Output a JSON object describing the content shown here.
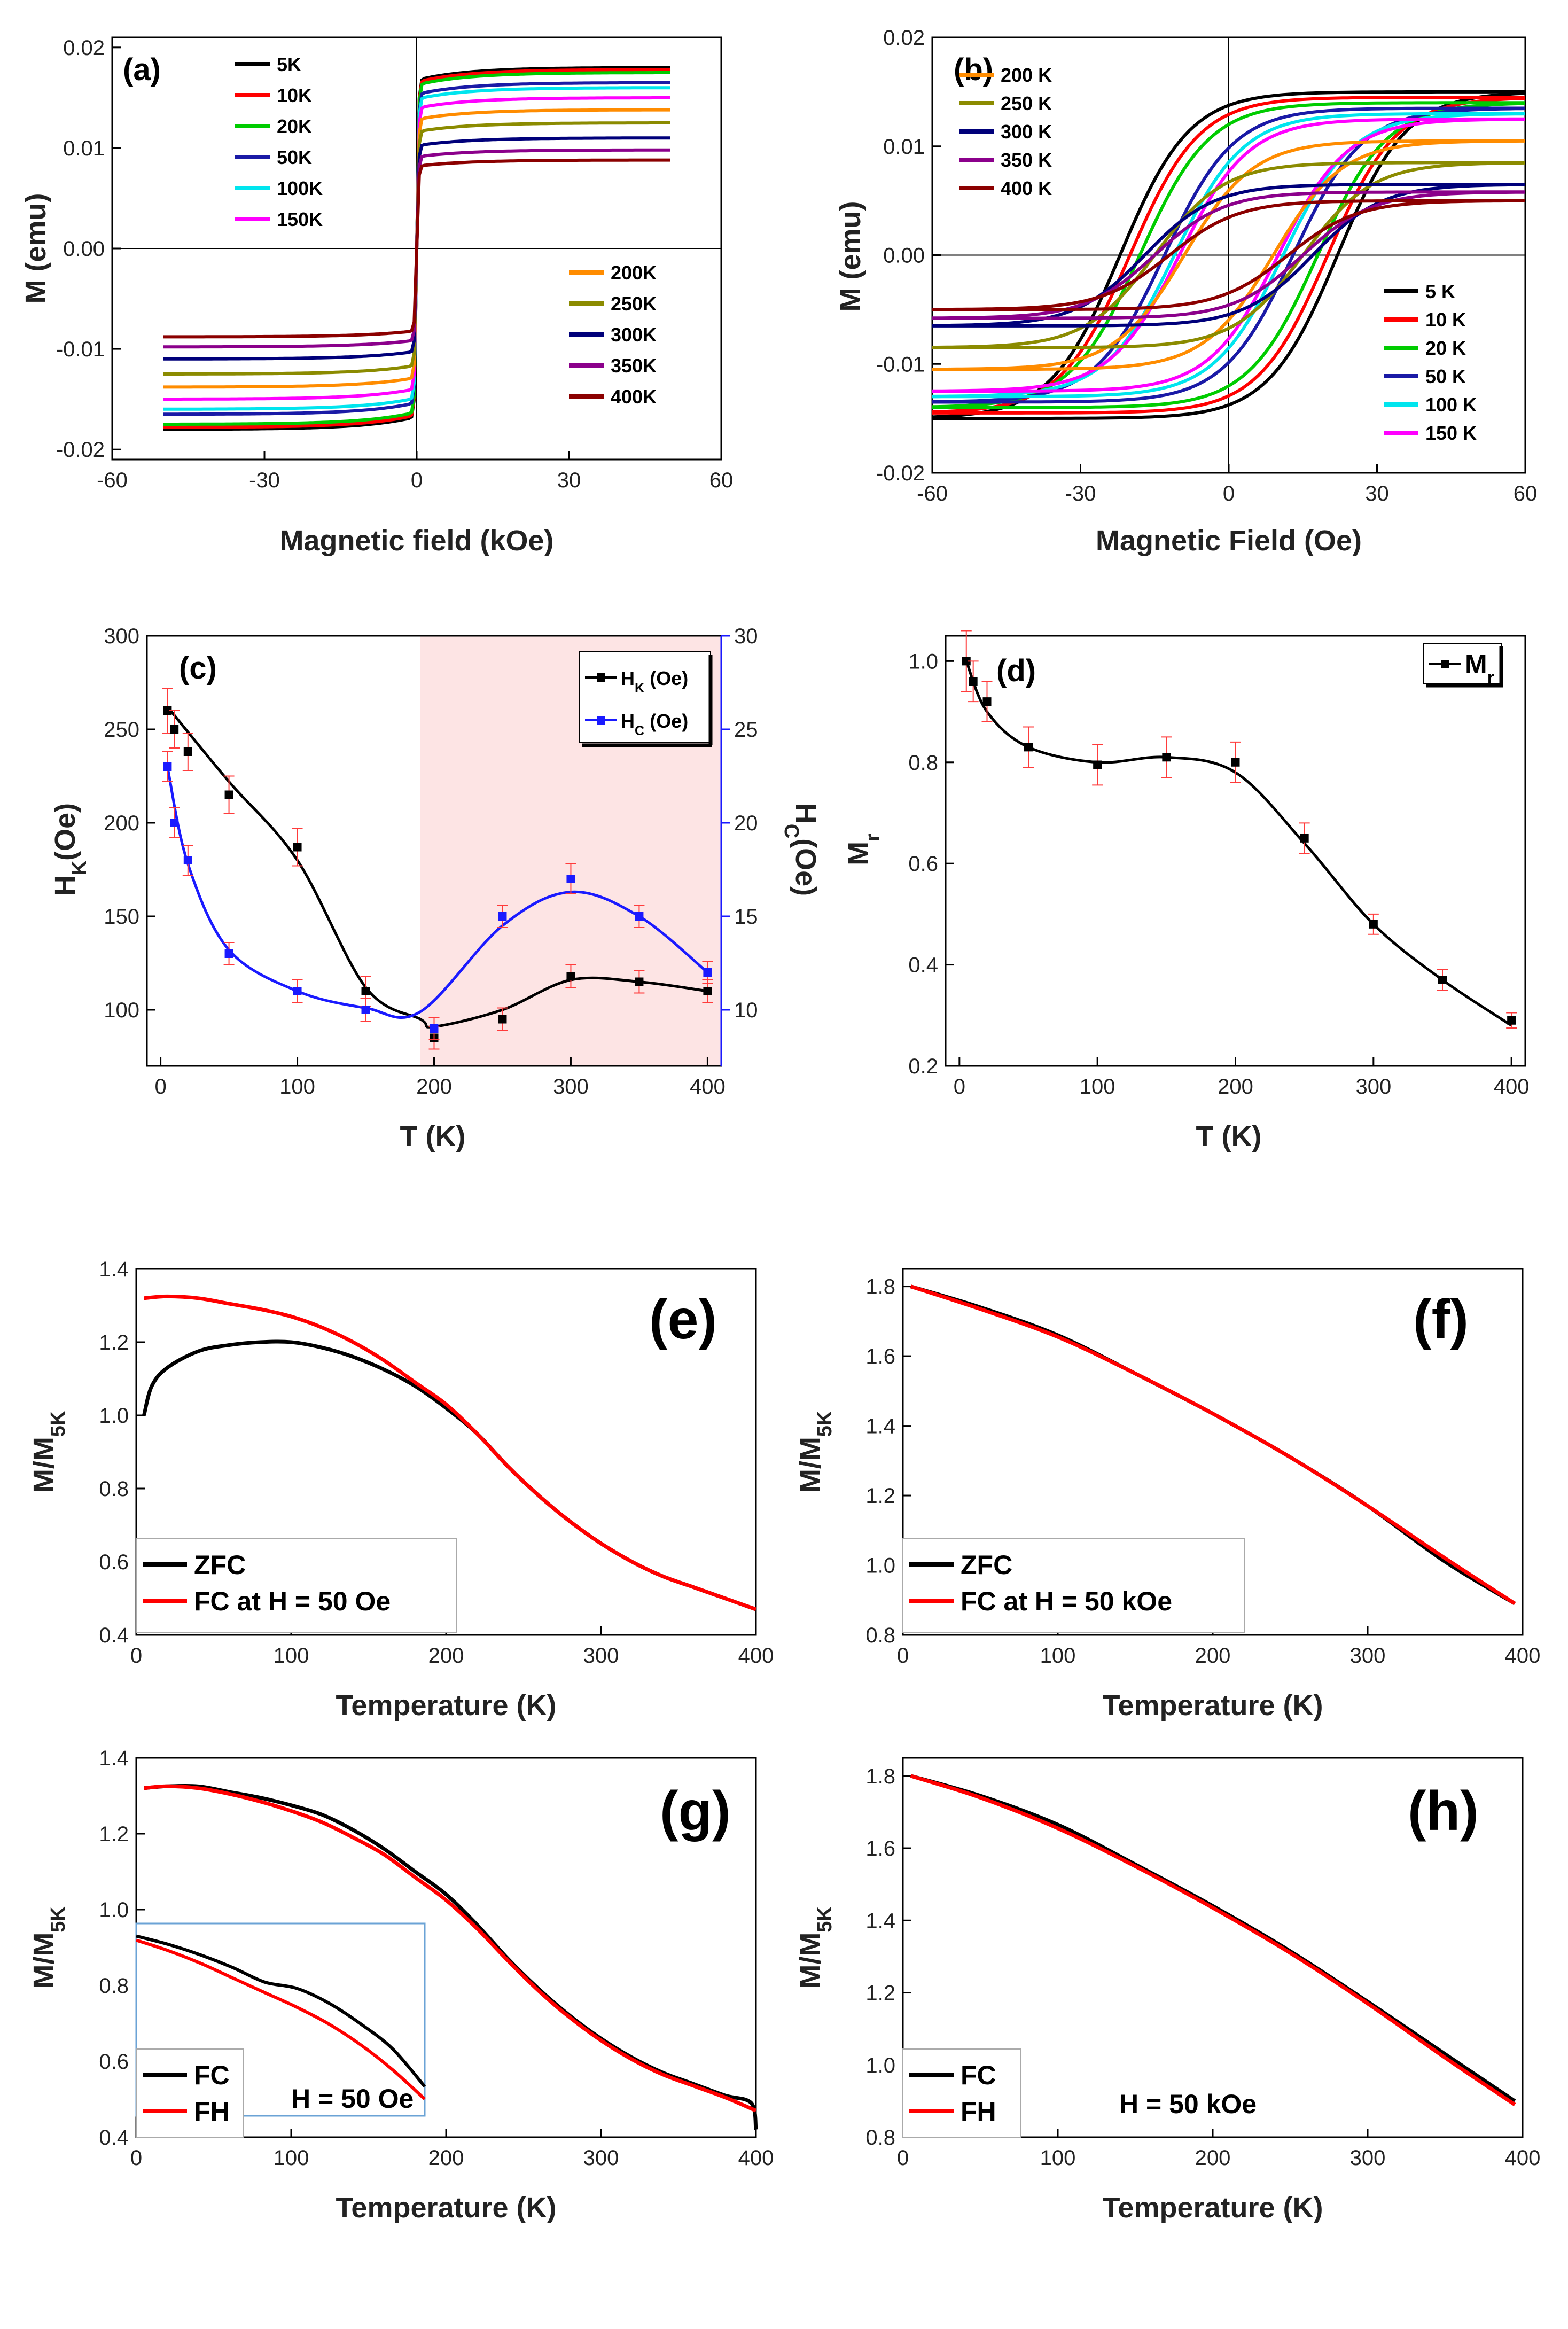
{
  "chart_data": [
    {
      "id": "a",
      "type": "line",
      "panel_label": "(a)",
      "xlabel": "Magnetic field (kOe)",
      "ylabel": "M (emu)",
      "xlim": [
        -60,
        60
      ],
      "ylim": [
        -0.021,
        0.021
      ],
      "xticks": [
        -60,
        -30,
        0,
        30,
        60
      ],
      "yticks": [
        -0.02,
        -0.01,
        0.0,
        0.01,
        0.02
      ],
      "ytick_labels": [
        "-0.02",
        "-0.01",
        "0.00",
        "0.01",
        "0.02"
      ],
      "legend": [
        {
          "position": "top-left",
          "items": [
            "5K",
            "10K",
            "20K",
            "50K",
            "100K",
            "150K"
          ]
        },
        {
          "position": "bottom-right",
          "items": [
            "200K",
            "250K",
            "300K",
            "350K",
            "400K"
          ]
        }
      ],
      "series": [
        {
          "name": "5K",
          "color": "#000000",
          "ms": 0.018
        },
        {
          "name": "10K",
          "color": "#ff0000",
          "ms": 0.0178
        },
        {
          "name": "20K",
          "color": "#00cc00",
          "ms": 0.0175
        },
        {
          "name": "50K",
          "color": "#1a1aa6",
          "ms": 0.0165
        },
        {
          "name": "100K",
          "color": "#00e5ee",
          "ms": 0.016
        },
        {
          "name": "150K",
          "color": "#ff00ff",
          "ms": 0.015
        },
        {
          "name": "200K",
          "color": "#ff8c00",
          "ms": 0.0138
        },
        {
          "name": "250K",
          "color": "#8b8b00",
          "ms": 0.0125
        },
        {
          "name": "300K",
          "color": "#00007a",
          "ms": 0.011
        },
        {
          "name": "350K",
          "color": "#8b008b",
          "ms": 0.0098
        },
        {
          "name": "400K",
          "color": "#8b0000",
          "ms": 0.0088
        }
      ]
    },
    {
      "id": "b",
      "type": "line",
      "panel_label": "(b)",
      "xlabel": "Magnetic Field (Oe)",
      "ylabel": "M (emu)",
      "xlim": [
        -60,
        60
      ],
      "ylim": [
        -0.02,
        0.02
      ],
      "xticks": [
        -60,
        -30,
        0,
        30,
        60
      ],
      "yticks": [
        -0.02,
        -0.01,
        0.0,
        0.01,
        0.02
      ],
      "ytick_labels": [
        "-0.02",
        "-0.01",
        "0.00",
        "0.01",
        "0.02"
      ],
      "legend": [
        {
          "position": "top-left",
          "items": [
            "200 K",
            "250 K",
            "300 K",
            "350 K",
            "400 K"
          ]
        },
        {
          "position": "bottom-right",
          "items": [
            "5 K",
            "10 K",
            "20 K",
            "50 K",
            "100 K",
            "150 K"
          ]
        }
      ],
      "series": [
        {
          "name": "5 K",
          "color": "#000000",
          "ms": 0.015,
          "hc": 22
        },
        {
          "name": "10 K",
          "color": "#ff0000",
          "ms": 0.0145,
          "hc": 20
        },
        {
          "name": "20 K",
          "color": "#00cc00",
          "ms": 0.014,
          "hc": 18
        },
        {
          "name": "50 K",
          "color": "#1a1aa6",
          "ms": 0.0135,
          "hc": 13
        },
        {
          "name": "100 K",
          "color": "#00e5ee",
          "ms": 0.013,
          "hc": 11
        },
        {
          "name": "150 K",
          "color": "#ff00ff",
          "ms": 0.0125,
          "hc": 10
        },
        {
          "name": "200 K",
          "color": "#ff8c00",
          "ms": 0.0105,
          "hc": 9
        },
        {
          "name": "250 K",
          "color": "#8b8b00",
          "ms": 0.0085,
          "hc": 15
        },
        {
          "name": "300 K",
          "color": "#00007a",
          "ms": 0.0065,
          "hc": 17
        },
        {
          "name": "350 K",
          "color": "#8b008b",
          "ms": 0.0058,
          "hc": 15
        },
        {
          "name": "400 K",
          "color": "#8b0000",
          "ms": 0.005,
          "hc": 12
        }
      ]
    },
    {
      "id": "c",
      "type": "scatter",
      "panel_label": "(c)",
      "xlabel": "T (K)",
      "ylabel": "H_K(Oe)",
      "ylabel_right": "H_C(Oe)",
      "xlim": [
        -10,
        410
      ],
      "ylim": [
        70,
        300
      ],
      "ylim_right": [
        7,
        30
      ],
      "xticks": [
        0,
        100,
        200,
        300,
        400
      ],
      "yticks": [
        100,
        150,
        200,
        250,
        300
      ],
      "yticks_right": [
        10,
        15,
        20,
        25,
        30
      ],
      "shaded_region_x": [
        190,
        410
      ],
      "legend_items": [
        "H_K (Oe)",
        "H_C (Oe)"
      ],
      "series": [
        {
          "name": "H_K (Oe)",
          "color": "#000000",
          "x": [
            5,
            10,
            20,
            50,
            100,
            150,
            200,
            250,
            300,
            350,
            400
          ],
          "y": [
            260,
            250,
            238,
            215,
            187,
            110,
            85,
            95,
            118,
            115,
            110
          ],
          "err": [
            12,
            10,
            10,
            10,
            10,
            8,
            6,
            6,
            6,
            6,
            6
          ]
        },
        {
          "name": "H_C (Oe)",
          "color": "#1a1aff",
          "x": [
            5,
            10,
            20,
            50,
            100,
            150,
            200,
            250,
            300,
            350,
            400
          ],
          "y": [
            23,
            20,
            18,
            13,
            11,
            10,
            9,
            15,
            17,
            15,
            12
          ],
          "err": [
            0.8,
            0.8,
            0.8,
            0.6,
            0.6,
            0.6,
            0.6,
            0.6,
            0.8,
            0.6,
            0.6
          ]
        }
      ],
      "fit_curves": [
        {
          "name": "H_K fit",
          "color": "#000000",
          "x": [
            5,
            50,
            100,
            150,
            190,
            200,
            250,
            300,
            350,
            400
          ],
          "y": [
            262,
            222,
            180,
            112,
            95,
            91,
            100,
            116,
            115,
            110
          ]
        },
        {
          "name": "H_C fit",
          "color": "#1a1aff",
          "x": [
            5,
            20,
            50,
            100,
            150,
            190,
            250,
            300,
            350,
            400
          ],
          "y": [
            23,
            17.8,
            13.2,
            11,
            10.1,
            9.9,
            14.5,
            16.3,
            15,
            12
          ]
        }
      ]
    },
    {
      "id": "d",
      "type": "scatter",
      "panel_label": "(d)",
      "xlabel": "T (K)",
      "ylabel": "M_r",
      "xlim": [
        -10,
        410
      ],
      "ylim": [
        0.2,
        1.05
      ],
      "xticks": [
        0,
        100,
        200,
        300,
        400
      ],
      "yticks": [
        0.2,
        0.4,
        0.6,
        0.8,
        1.0
      ],
      "ytick_labels": [
        "0.2",
        "0.4",
        "0.6",
        "0.8",
        "1.0"
      ],
      "legend_items": [
        "M_r"
      ],
      "series": [
        {
          "name": "M_r",
          "color": "#000000",
          "x": [
            5,
            10,
            20,
            50,
            100,
            150,
            200,
            250,
            300,
            350,
            400
          ],
          "y": [
            1.0,
            0.96,
            0.92,
            0.83,
            0.795,
            0.81,
            0.8,
            0.65,
            0.48,
            0.37,
            0.29
          ],
          "err": [
            0.06,
            0.04,
            0.04,
            0.04,
            0.04,
            0.04,
            0.04,
            0.03,
            0.02,
            0.02,
            0.015
          ]
        }
      ],
      "fit_curves": [
        {
          "name": "M_r fit",
          "color": "#000000",
          "x": [
            5,
            20,
            50,
            100,
            150,
            200,
            250,
            300,
            350,
            400
          ],
          "y": [
            1.0,
            0.9,
            0.83,
            0.8,
            0.81,
            0.78,
            0.64,
            0.48,
            0.37,
            0.28
          ]
        }
      ]
    },
    {
      "id": "e",
      "type": "line",
      "panel_label": "(e)",
      "xlabel": "Temperature (K)",
      "ylabel": "M/M5K",
      "xlim": [
        0,
        400
      ],
      "ylim": [
        0.4,
        1.4
      ],
      "xticks": [
        0,
        100,
        200,
        300,
        400
      ],
      "yticks": [
        0.4,
        0.6,
        0.8,
        1.0,
        1.2,
        1.4
      ],
      "ytick_labels": [
        "0.4",
        "0.6",
        "0.8",
        "1.0",
        "1.2",
        "1.4"
      ],
      "legend_items": [
        "ZFC",
        "FC at H = 50 Oe"
      ],
      "series": [
        {
          "name": "ZFC",
          "color": "#000000",
          "x": [
            5,
            10,
            20,
            40,
            60,
            80,
            100,
            120,
            140,
            160,
            180,
            200,
            220,
            240,
            260,
            280,
            300,
            320,
            340,
            360,
            380,
            400
          ],
          "y": [
            1.0,
            1.08,
            1.13,
            1.175,
            1.192,
            1.2,
            1.2,
            1.185,
            1.16,
            1.125,
            1.08,
            1.02,
            0.95,
            0.86,
            0.78,
            0.71,
            0.65,
            0.6,
            0.56,
            0.53,
            0.5,
            0.47
          ]
        },
        {
          "name": "FC at H = 50 Oe",
          "color": "#ff0000",
          "x": [
            5,
            20,
            40,
            60,
            80,
            100,
            120,
            140,
            160,
            180,
            200,
            220,
            240,
            260,
            280,
            300,
            320,
            340,
            360,
            380,
            400
          ],
          "y": [
            1.32,
            1.325,
            1.32,
            1.305,
            1.29,
            1.27,
            1.24,
            1.2,
            1.15,
            1.09,
            1.03,
            0.95,
            0.86,
            0.78,
            0.71,
            0.65,
            0.6,
            0.56,
            0.53,
            0.5,
            0.47
          ]
        }
      ]
    },
    {
      "id": "f",
      "type": "line",
      "panel_label": "(f)",
      "xlabel": "Temperature (K)",
      "ylabel": "M/M5K",
      "xlim": [
        0,
        400
      ],
      "ylim": [
        0.8,
        1.85
      ],
      "xticks": [
        0,
        100,
        200,
        300,
        400
      ],
      "yticks": [
        0.8,
        1.0,
        1.2,
        1.4,
        1.6,
        1.8
      ],
      "ytick_labels": [
        "0.8",
        "1.0",
        "1.2",
        "1.4",
        "1.6",
        "1.8"
      ],
      "legend_items": [
        "ZFC",
        "FC at H = 50 kOe"
      ],
      "series": [
        {
          "name": "ZFC",
          "color": "#000000",
          "x": [
            5,
            50,
            100,
            150,
            200,
            250,
            300,
            350,
            395
          ],
          "y": [
            1.8,
            1.74,
            1.66,
            1.55,
            1.435,
            1.31,
            1.17,
            1.01,
            0.89
          ]
        },
        {
          "name": "FC at H = 50 kOe",
          "color": "#ff0000",
          "x": [
            5,
            50,
            100,
            150,
            200,
            250,
            300,
            350,
            395
          ],
          "y": [
            1.8,
            1.735,
            1.655,
            1.55,
            1.435,
            1.31,
            1.17,
            1.02,
            0.89
          ]
        }
      ]
    },
    {
      "id": "g",
      "type": "line",
      "panel_label": "(g)",
      "xlabel": "Temperature (K)",
      "ylabel": "M/M5K",
      "xlim": [
        0,
        400
      ],
      "ylim": [
        0.4,
        1.4
      ],
      "xticks": [
        0,
        100,
        200,
        300,
        400
      ],
      "yticks": [
        0.4,
        0.6,
        0.8,
        1.0,
        1.2,
        1.4
      ],
      "ytick_labels": [
        "0.4",
        "0.6",
        "0.8",
        "1.0",
        "1.2",
        "1.4"
      ],
      "legend_items": [
        "FC",
        "FH"
      ],
      "annotation": "H = 50 Oe",
      "series": [
        {
          "name": "FC",
          "color": "#000000",
          "x": [
            5,
            20,
            40,
            60,
            80,
            100,
            120,
            140,
            160,
            180,
            200,
            220,
            240,
            260,
            280,
            300,
            320,
            340,
            360,
            380,
            397,
            400
          ],
          "y": [
            1.32,
            1.325,
            1.325,
            1.31,
            1.295,
            1.275,
            1.25,
            1.21,
            1.16,
            1.1,
            1.04,
            0.96,
            0.87,
            0.79,
            0.72,
            0.66,
            0.61,
            0.57,
            0.54,
            0.51,
            0.49,
            0.42
          ]
        },
        {
          "name": "FH",
          "color": "#ff0000",
          "x": [
            5,
            20,
            40,
            60,
            80,
            100,
            120,
            140,
            160,
            180,
            200,
            220,
            240,
            260,
            280,
            300,
            320,
            340,
            360,
            380,
            400
          ],
          "y": [
            1.32,
            1.325,
            1.32,
            1.305,
            1.285,
            1.26,
            1.23,
            1.19,
            1.145,
            1.085,
            1.025,
            0.95,
            0.865,
            0.785,
            0.715,
            0.655,
            0.605,
            0.565,
            0.535,
            0.505,
            0.47
          ]
        }
      ],
      "inset": {
        "series": [
          {
            "name": "FC",
            "color": "#000000",
            "y": [
              1.03,
              1.01,
              0.985,
              0.955,
              0.92,
              0.905,
              0.87,
              0.82,
              0.76,
              0.67
            ]
          },
          {
            "name": "FH",
            "color": "#ff0000",
            "y": [
              1.02,
              0.995,
              0.965,
              0.93,
              0.895,
              0.86,
              0.82,
              0.77,
              0.71,
              0.64
            ]
          }
        ]
      }
    },
    {
      "id": "h",
      "type": "line",
      "panel_label": "(h)",
      "xlabel": "Temperature (K)",
      "ylabel": "M/M5K",
      "xlim": [
        0,
        400
      ],
      "ylim": [
        0.8,
        1.85
      ],
      "xticks": [
        0,
        100,
        200,
        300,
        400
      ],
      "yticks": [
        0.8,
        1.0,
        1.2,
        1.4,
        1.6,
        1.8
      ],
      "ytick_labels": [
        "0.8",
        "1.0",
        "1.2",
        "1.4",
        "1.6",
        "1.8"
      ],
      "legend_items": [
        "FC",
        "FH"
      ],
      "annotation": "H = 50 kOe",
      "series": [
        {
          "name": "FC",
          "color": "#000000",
          "x": [
            5,
            50,
            100,
            150,
            200,
            250,
            300,
            350,
            395
          ],
          "y": [
            1.8,
            1.745,
            1.665,
            1.555,
            1.44,
            1.315,
            1.175,
            1.03,
            0.9
          ]
        },
        {
          "name": "FH",
          "color": "#ff0000",
          "x": [
            5,
            50,
            100,
            150,
            200,
            250,
            300,
            350,
            395
          ],
          "y": [
            1.8,
            1.74,
            1.655,
            1.55,
            1.435,
            1.31,
            1.17,
            1.02,
            0.89
          ]
        }
      ]
    }
  ]
}
